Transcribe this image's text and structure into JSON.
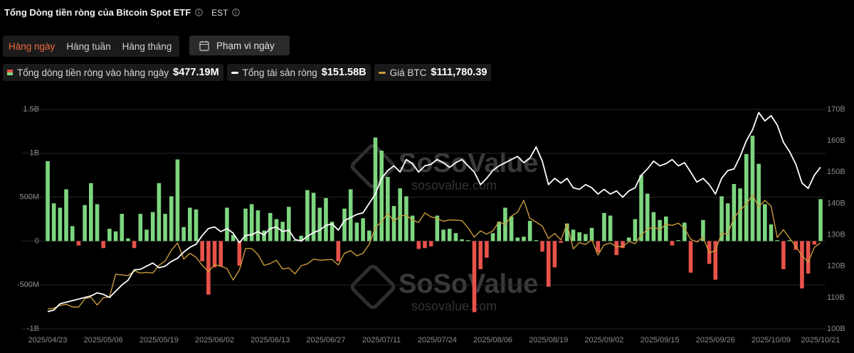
{
  "header": {
    "title": "Tổng Dòng tiền ròng của Bitcoin Spot ETF",
    "timezone": "EST"
  },
  "controls": {
    "tabs": [
      "Hàng ngày",
      "Hàng tuần",
      "Hàng tháng"
    ],
    "active_tab": 0,
    "date_range": "Phạm vi ngày"
  },
  "watermark": {
    "brand": "SoSoValue",
    "url": "sosovalue.com"
  },
  "chart_data": {
    "type": "combo",
    "grid": true,
    "categories": [
      "2025/04/23",
      null,
      null,
      null,
      null,
      null,
      null,
      null,
      null,
      "2025/05/06",
      null,
      null,
      null,
      null,
      null,
      null,
      null,
      null,
      "2025/05/19",
      null,
      null,
      null,
      null,
      null,
      null,
      null,
      null,
      "2025/06/02",
      null,
      null,
      null,
      null,
      null,
      null,
      null,
      null,
      "2025/06/13",
      null,
      null,
      null,
      null,
      null,
      null,
      null,
      null,
      "2025/06/27",
      null,
      null,
      null,
      null,
      null,
      null,
      null,
      null,
      "2025/07/11",
      null,
      null,
      null,
      null,
      null,
      null,
      null,
      null,
      "2025/07/24",
      null,
      null,
      null,
      null,
      null,
      null,
      null,
      null,
      "2025/08/06",
      null,
      null,
      null,
      null,
      null,
      null,
      null,
      null,
      "2025/08/19",
      null,
      null,
      null,
      null,
      null,
      null,
      null,
      null,
      "2025/09/02",
      null,
      null,
      null,
      null,
      null,
      null,
      null,
      null,
      "2025/09/15",
      null,
      null,
      null,
      null,
      null,
      null,
      null,
      null,
      "2025/09/26",
      null,
      null,
      null,
      null,
      null,
      null,
      null,
      null,
      "2025/10/09",
      null,
      null,
      null,
      null,
      null,
      null,
      null,
      "2025/10/21"
    ],
    "ylim": [
      -1000,
      1500
    ],
    "yticks": [
      {
        "value": -1000,
        "label": "-1B"
      },
      {
        "value": -500,
        "label": "-500M"
      },
      0,
      {
        "value": 500,
        "label": "500M"
      },
      {
        "value": 1000,
        "label": "1B"
      },
      {
        "value": 1500,
        "label": "1.5B"
      }
    ],
    "y2lim": [
      100,
      170
    ],
    "y2ticks": [
      {
        "value": 100,
        "label": "100B"
      },
      {
        "value": 110,
        "label": "110B"
      },
      {
        "value": 120,
        "label": "120B"
      },
      {
        "value": 130,
        "label": "130B"
      },
      {
        "value": 140,
        "label": "140B"
      },
      {
        "value": 150,
        "label": "150B"
      },
      {
        "value": 160,
        "label": "160B"
      },
      {
        "value": 170,
        "label": "170B"
      }
    ],
    "y3lim": [
      88300,
      148100
    ],
    "series": [
      {
        "name": "Tổng dòng tiền ròng vào hàng ngày",
        "type": "bar",
        "color": "#7dd67f",
        "negative_color": "#e8524a",
        "legend_value": "$477.19M",
        "values": [
          910,
          430,
          380,
          590,
          170,
          -50,
          410,
          660,
          420,
          -80,
          140,
          110,
          310,
          30,
          -80,
          310,
          130,
          330,
          660,
          310,
          510,
          930,
          160,
          380,
          360,
          -230,
          -610,
          -300,
          -290,
          380,
          70,
          -280,
          370,
          420,
          350,
          120,
          320,
          250,
          220,
          390,
          10,
          60,
          580,
          550,
          380,
          490,
          220,
          -230,
          370,
          590,
          210,
          260,
          120,
          1180,
          1030,
          730,
          400,
          600,
          510,
          290,
          -90,
          -80,
          -60,
          290,
          130,
          140,
          90,
          20,
          10,
          -810,
          -320,
          -190,
          90,
          220,
          380,
          280,
          40,
          50,
          230,
          10,
          -120,
          -520,
          -300,
          -20,
          200,
          130,
          100,
          80,
          150,
          -130,
          320,
          290,
          -160,
          -80,
          40,
          250,
          750,
          540,
          330,
          240,
          280,
          -50,
          10,
          210,
          -360,
          -10,
          240,
          -260,
          -440,
          510,
          430,
          650,
          600,
          990,
          1200,
          880,
          420,
          190,
          10,
          -320,
          10,
          -100,
          -540,
          -370,
          -40,
          477.19
        ]
      },
      {
        "name": "Tổng tài sản ròng",
        "type": "line",
        "axis": "y2",
        "color": "#ffffff",
        "legend_value": "$151.58B",
        "values": [
          105.5,
          106,
          108,
          108.5,
          109,
          109.5,
          110,
          110.5,
          111.5,
          111,
          110,
          112,
          114,
          115.5,
          118.8,
          119,
          120,
          121,
          119.5,
          120,
          121.5,
          122.5,
          124.5,
          126,
          127,
          129.8,
          132,
          132.5,
          131,
          132,
          130.5,
          127.5,
          129.8,
          130,
          131,
          130,
          132,
          132.5,
          131,
          131.5,
          128.5,
          128,
          129.5,
          130.7,
          131.5,
          133,
          133.5,
          131.5,
          134.5,
          135.5,
          136.5,
          137,
          140,
          143,
          148,
          150.5,
          152,
          150,
          154,
          152.7,
          150,
          152,
          152.5,
          154,
          153,
          151.5,
          153,
          154,
          152,
          150,
          146,
          148,
          150.5,
          152,
          153,
          154,
          155,
          153,
          154.5,
          158,
          153.5,
          146,
          148,
          146.5,
          148,
          145,
          144.5,
          146,
          145,
          143,
          144.5,
          143,
          144,
          142,
          144,
          145,
          149,
          151,
          153.5,
          152,
          152.7,
          154,
          152,
          153,
          150,
          146.8,
          148,
          146,
          143,
          148,
          150.5,
          151,
          155,
          160,
          163.5,
          169,
          166.3,
          168,
          165,
          159.5,
          156.5,
          152.5,
          146.5,
          144.8,
          149,
          151.58
        ]
      },
      {
        "name": "Giá BTC",
        "type": "line",
        "axis": "y3",
        "color": "#c99a3c",
        "legend_value": "$111,780.39",
        "values": [
          93700,
          93900,
          94700,
          95000,
          94300,
          94200,
          96500,
          96900,
          94800,
          96800,
          97000,
          103200,
          103000,
          102800,
          104100,
          103500,
          103700,
          103500,
          105600,
          106800,
          109700,
          111700,
          107300,
          108900,
          107800,
          105600,
          103900,
          105800,
          105400,
          104700,
          101600,
          104300,
          110200,
          110200,
          108600,
          105600,
          106100,
          107000,
          104600,
          104900,
          103300,
          105500,
          106000,
          107300,
          107000,
          107100,
          107200,
          105700,
          108900,
          109600,
          108200,
          108900,
          111300,
          115900,
          117500,
          119800,
          117600,
          119000,
          119300,
          117900,
          117300,
          119900,
          118800,
          118400,
          117600,
          118000,
          117900,
          117800,
          115800,
          113300,
          115000,
          114100,
          115000,
          117500,
          116700,
          119000,
          120100,
          123300,
          118400,
          117400,
          116300,
          112900,
          114300,
          112500,
          116900,
          110100,
          111800,
          111300,
          112600,
          108400,
          111200,
          111700,
          110700,
          110700,
          112100,
          111500,
          113900,
          115400,
          116100,
          115300,
          116800,
          116500,
          117100,
          115700,
          112700,
          112000,
          113300,
          109000,
          109600,
          114400,
          114100,
          118600,
          120600,
          122300,
          124800,
          121500,
          123300,
          121700,
          113200,
          115300,
          113000,
          110800,
          108200,
          106500,
          110500,
          111780.39
        ]
      }
    ]
  }
}
